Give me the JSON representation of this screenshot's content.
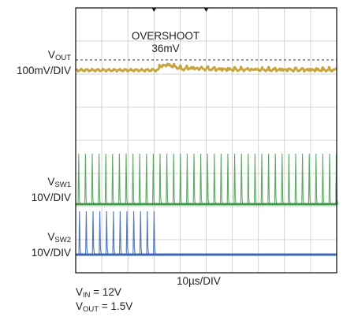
{
  "chart_data": {
    "type": "line",
    "title": "",
    "xlabel": "10µs/DIV",
    "grid": true,
    "grid_divisions": {
      "x": 10,
      "y": 8
    },
    "colors": {
      "vout": "#c9a33c",
      "vsw1": "#3e9a47",
      "vsw2": "#3c66b5",
      "grid": "#c9c9c9",
      "frame": "#1a1a1a"
    },
    "series": [
      {
        "key": "vout",
        "symbol": "V",
        "subscript": "OUT",
        "scale": "100mV/DIV",
        "description_values": {
          "overshoot_mV": 36,
          "transient_start_div": 3.2,
          "transient_end_div": 4.2
        }
      },
      {
        "key": "vsw1",
        "symbol": "V",
        "subscript": "SW1",
        "scale": "10V/DIV",
        "description_values": {
          "switching": "continuous"
        }
      },
      {
        "key": "vsw2",
        "symbol": "V",
        "subscript": "SW2",
        "scale": "10V/DIV",
        "description_values": {
          "switching_stops_div": 3.2
        }
      }
    ],
    "annotations": {
      "overshoot_title": "OVERSHOOT",
      "overshoot_value": "36mV"
    },
    "conditions": [
      {
        "symbol": "V",
        "subscript": "IN",
        "value": "= 12V"
      },
      {
        "symbol": "V",
        "subscript": "OUT",
        "value": "= 1.5V"
      }
    ]
  }
}
